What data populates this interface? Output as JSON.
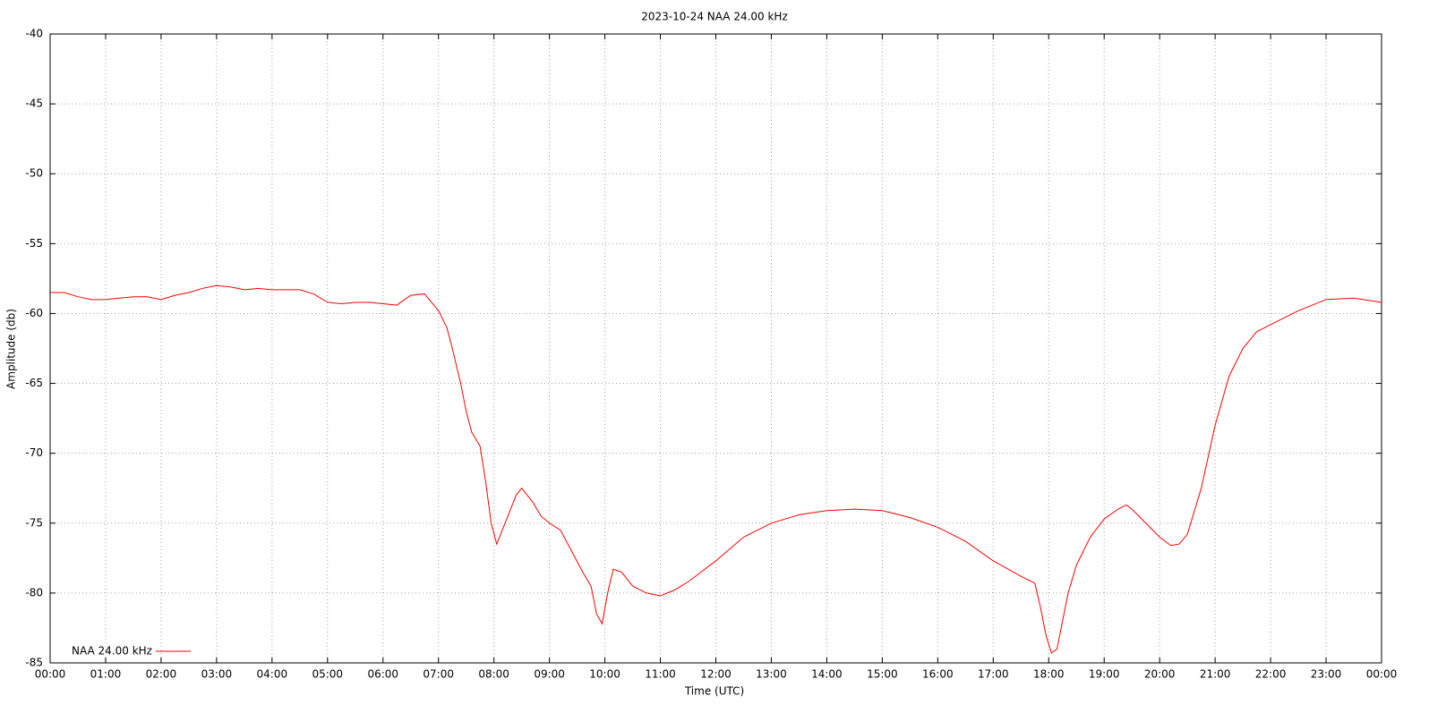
{
  "chart_data": {
    "type": "line",
    "title": "2023-10-24 NAA 24.00 kHz",
    "x_label": "Time (UTC)",
    "y_label": "Amplitude (db)",
    "x": [
      0,
      0.25,
      0.5,
      0.75,
      1,
      1.25,
      1.5,
      1.75,
      2,
      2.25,
      2.5,
      2.75,
      3,
      3.25,
      3.5,
      3.75,
      4,
      4.25,
      4.5,
      4.75,
      5,
      5.25,
      5.5,
      5.75,
      6,
      6.25,
      6.5,
      6.75,
      7,
      7.15,
      7.25,
      7.4,
      7.5,
      7.6,
      7.75,
      7.85,
      7.95,
      8.05,
      8.2,
      8.4,
      8.5,
      8.7,
      8.85,
      9,
      9.2,
      9.4,
      9.6,
      9.75,
      9.85,
      9.95,
      10.05,
      10.15,
      10.3,
      10.5,
      10.75,
      11,
      11.25,
      11.5,
      12,
      12.5,
      13,
      13.5,
      14,
      14.5,
      15,
      15.5,
      16,
      16.5,
      17,
      17.5,
      17.75,
      17.85,
      17.95,
      18.05,
      18.15,
      18.25,
      18.35,
      18.5,
      18.75,
      19,
      19.25,
      19.4,
      19.5,
      19.75,
      20,
      20.2,
      20.35,
      20.5,
      20.75,
      21,
      21.25,
      21.5,
      21.75,
      22,
      22.5,
      23,
      23.5,
      24
    ],
    "series": [
      {
        "name": "NAA 24.00 kHz",
        "color": "#ff0000",
        "values": [
          -58.5,
          -58.5,
          -58.8,
          -59.0,
          -59.0,
          -58.9,
          -58.8,
          -58.8,
          -59.0,
          -58.7,
          -58.5,
          -58.2,
          -58.0,
          -58.1,
          -58.3,
          -58.2,
          -58.3,
          -58.3,
          -58.3,
          -58.6,
          -59.2,
          -59.3,
          -59.2,
          -59.2,
          -59.3,
          -59.4,
          -58.7,
          -58.6,
          -59.8,
          -61,
          -62.5,
          -65,
          -67,
          -68.5,
          -69.5,
          -72,
          -75,
          -76.5,
          -75,
          -73,
          -72.5,
          -73.5,
          -74.5,
          -75,
          -75.5,
          -77,
          -78.5,
          -79.5,
          -81.5,
          -82.2,
          -80,
          -78.3,
          -78.5,
          -79.5,
          -80,
          -80.2,
          -79.8,
          -79.2,
          -77.7,
          -76,
          -75,
          -74.4,
          -74.1,
          -74.0,
          -74.1,
          -74.6,
          -75.3,
          -76.3,
          -77.7,
          -78.8,
          -79.3,
          -81,
          -83,
          -84.3,
          -84,
          -82,
          -80,
          -78,
          -76,
          -74.7,
          -74.0,
          -73.7,
          -74,
          -75,
          -76,
          -76.6,
          -76.5,
          -75.8,
          -72.5,
          -68,
          -64.5,
          -62.5,
          -61.3,
          -60.8,
          -59.8,
          -59,
          -58.9,
          -59.2
        ]
      }
    ],
    "xlim": [
      0,
      24
    ],
    "ylim": [
      -85,
      -40
    ],
    "xticks": [
      {
        "value": 0,
        "label": "00:00"
      },
      {
        "value": 1,
        "label": "01:00"
      },
      {
        "value": 2,
        "label": "02:00"
      },
      {
        "value": 3,
        "label": "03:00"
      },
      {
        "value": 4,
        "label": "04:00"
      },
      {
        "value": 5,
        "label": "05:00"
      },
      {
        "value": 6,
        "label": "06:00"
      },
      {
        "value": 7,
        "label": "07:00"
      },
      {
        "value": 8,
        "label": "08:00"
      },
      {
        "value": 9,
        "label": "09:00"
      },
      {
        "value": 10,
        "label": "10:00"
      },
      {
        "value": 11,
        "label": "11:00"
      },
      {
        "value": 12,
        "label": "12:00"
      },
      {
        "value": 13,
        "label": "13:00"
      },
      {
        "value": 14,
        "label": "14:00"
      },
      {
        "value": 15,
        "label": "15:00"
      },
      {
        "value": 16,
        "label": "16:00"
      },
      {
        "value": 17,
        "label": "17:00"
      },
      {
        "value": 18,
        "label": "18:00"
      },
      {
        "value": 19,
        "label": "19:00"
      },
      {
        "value": 20,
        "label": "20:00"
      },
      {
        "value": 21,
        "label": "21:00"
      },
      {
        "value": 22,
        "label": "22:00"
      },
      {
        "value": 23,
        "label": "23:00"
      },
      {
        "value": 24,
        "label": "00:00"
      }
    ],
    "yticks": [
      -40,
      -45,
      -50,
      -55,
      -60,
      -65,
      -70,
      -75,
      -80,
      -85
    ],
    "grid": true,
    "legend": "bottom-left"
  }
}
